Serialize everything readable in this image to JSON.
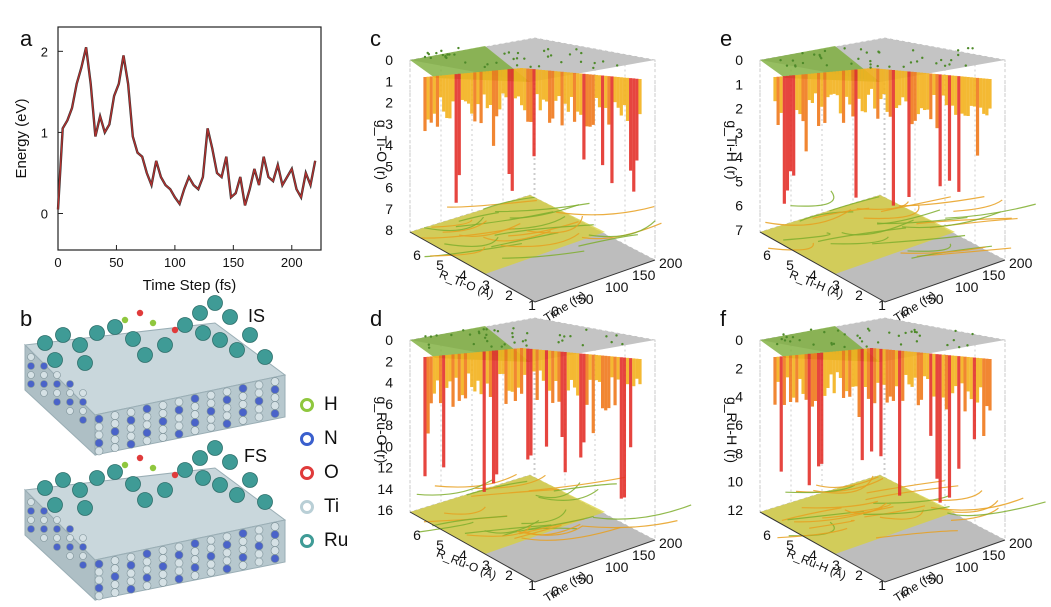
{
  "panels": {
    "a": "a",
    "b": "b",
    "c": "c",
    "d": "d",
    "e": "e",
    "f": "f"
  },
  "structure_labels": {
    "initial": "IS",
    "final": "FS"
  },
  "legend": [
    {
      "label": "H",
      "color": "#8fc73e"
    },
    {
      "label": "N",
      "color": "#3a5fcd"
    },
    {
      "label": "O",
      "color": "#e03b3b"
    },
    {
      "label": "Ti",
      "color": "#b9cfd6"
    },
    {
      "label": "Ru",
      "color": "#3f9b96"
    }
  ],
  "chart_data": [
    {
      "panel": "a",
      "type": "line",
      "xlabel": "Time Step (fs)",
      "ylabel": "Energy (eV)",
      "xlim": [
        0,
        225
      ],
      "ylim": [
        -0.45,
        2.3
      ],
      "xticks": [
        0,
        50,
        100,
        150,
        200
      ],
      "yticks": [
        0,
        1,
        2
      ],
      "series": [
        {
          "name": "Energy",
          "color": "#b5302e",
          "x": [
            0,
            4,
            8,
            12,
            16,
            20,
            24,
            28,
            32,
            36,
            40,
            44,
            48,
            52,
            56,
            60,
            64,
            68,
            72,
            76,
            80,
            84,
            88,
            92,
            96,
            100,
            104,
            108,
            112,
            116,
            120,
            124,
            128,
            132,
            136,
            140,
            144,
            148,
            152,
            156,
            160,
            164,
            168,
            172,
            176,
            180,
            184,
            188,
            192,
            196,
            200,
            204,
            208,
            212,
            216,
            220
          ],
          "y": [
            0.05,
            1.05,
            1.15,
            1.3,
            1.6,
            1.8,
            2.05,
            1.6,
            0.95,
            1.2,
            1.0,
            1.1,
            1.45,
            1.6,
            1.95,
            1.6,
            0.95,
            0.75,
            0.7,
            0.5,
            0.35,
            0.65,
            0.45,
            0.35,
            0.3,
            0.2,
            0.12,
            0.3,
            0.45,
            0.35,
            0.3,
            0.45,
            1.05,
            0.8,
            0.5,
            0.45,
            0.7,
            0.2,
            0.25,
            0.45,
            0.1,
            0.3,
            0.55,
            0.35,
            0.7,
            0.45,
            0.4,
            0.6,
            0.35,
            0.45,
            0.55,
            0.3,
            0.2,
            0.5,
            0.35,
            0.65
          ]
        }
      ]
    },
    {
      "panel": "c",
      "type": "surface3d",
      "zlabel": "g_Ti-O (r)",
      "xlabel": "R_Ti-O (Å)",
      "ylabel": "Time (fs)",
      "zticks": [
        0,
        1,
        2,
        3,
        4,
        5,
        6,
        7,
        8
      ],
      "rticks": [
        1,
        2,
        3,
        4,
        5,
        6
      ],
      "tticks": [
        0,
        50,
        100,
        150,
        200
      ]
    },
    {
      "panel": "d",
      "type": "surface3d",
      "zlabel": "g_Ru-O (r)",
      "xlabel": "R_Ru-O (Å)",
      "ylabel": "Time (fs)",
      "zticks": [
        0,
        2,
        4,
        6,
        8,
        10,
        12,
        14,
        16
      ],
      "rticks": [
        1,
        2,
        3,
        4,
        5,
        6
      ],
      "tticks": [
        0,
        50,
        100,
        150,
        200
      ]
    },
    {
      "panel": "e",
      "type": "surface3d",
      "zlabel": "g_Ti-H (r)",
      "xlabel": "R_Ti-H (Å)",
      "ylabel": "Time (fs)",
      "zticks": [
        0,
        1,
        2,
        3,
        4,
        5,
        6,
        7
      ],
      "rticks": [
        1,
        2,
        3,
        4,
        5,
        6
      ],
      "tticks": [
        0,
        50,
        100,
        150,
        200
      ]
    },
    {
      "panel": "f",
      "type": "surface3d",
      "zlabel": "g_Ru-H (r)",
      "xlabel": "R_Ru-H (Å)",
      "ylabel": "Time (fs)",
      "zticks": [
        0,
        2,
        4,
        6,
        8,
        10,
        12
      ],
      "rticks": [
        1,
        2,
        3,
        4,
        5,
        6
      ],
      "tticks": [
        0,
        50,
        100,
        150,
        200
      ]
    }
  ]
}
